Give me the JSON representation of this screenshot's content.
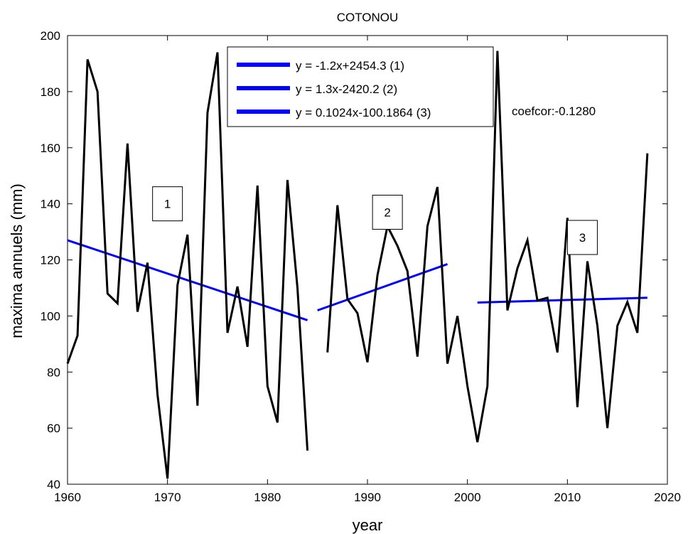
{
  "chart_data": {
    "type": "line",
    "title": "COTONOU",
    "xlabel": "year",
    "ylabel": "maxima annuels (mm)",
    "xlim": [
      1960,
      2020
    ],
    "ylim": [
      40,
      200
    ],
    "xticks": [
      1960,
      1970,
      1980,
      1990,
      2000,
      2010,
      2020
    ],
    "yticks": [
      40,
      60,
      80,
      100,
      120,
      140,
      160,
      180,
      200
    ],
    "grid": false,
    "legend_position": "top-center",
    "colors": {
      "series": "#000000",
      "trend": "#0000ff"
    },
    "series": [
      {
        "values": [
          [
            1960,
            83
          ],
          [
            1961,
            93
          ],
          [
            1962,
            191.5
          ],
          [
            1963,
            180
          ],
          [
            1964,
            108
          ],
          [
            1965,
            104.5
          ],
          [
            1966,
            161.5
          ],
          [
            1967,
            101.5
          ],
          [
            1968,
            119
          ],
          [
            1969,
            72
          ],
          [
            1970,
            42
          ],
          [
            1971,
            111
          ],
          [
            1972,
            129
          ],
          [
            1973,
            68
          ],
          [
            1974,
            172.5
          ],
          [
            1975,
            194
          ],
          [
            1976,
            94
          ],
          [
            1977,
            110.5
          ],
          [
            1978,
            89
          ],
          [
            1979,
            146.5
          ],
          [
            1980,
            75
          ],
          [
            1981,
            62
          ],
          [
            1982,
            148.5
          ],
          [
            1983,
            110
          ],
          [
            1984,
            52
          ],
          [
            1985,
            null
          ],
          [
            1986,
            87
          ],
          [
            1987,
            139.5
          ],
          [
            1988,
            106
          ],
          [
            1989,
            101
          ],
          [
            1990,
            83.5
          ],
          [
            1991,
            114.5
          ],
          [
            1992,
            132
          ],
          [
            1993,
            125
          ],
          [
            1994,
            116
          ],
          [
            1995,
            85.5
          ],
          [
            1996,
            132
          ],
          [
            1997,
            146
          ],
          [
            1998,
            83
          ],
          [
            1999,
            100
          ],
          [
            2000,
            75
          ],
          [
            2001,
            55
          ],
          [
            2002,
            75
          ],
          [
            2003,
            194.5
          ],
          [
            2004,
            102
          ],
          [
            2005,
            117
          ],
          [
            2006,
            127
          ],
          [
            2007,
            105.5
          ],
          [
            2008,
            106.5
          ],
          [
            2009,
            87
          ],
          [
            2010,
            135
          ],
          [
            2011,
            67.5
          ],
          [
            2012,
            119.5
          ],
          [
            2013,
            96.5
          ],
          [
            2014,
            60
          ],
          [
            2015,
            96.5
          ],
          [
            2016,
            105
          ],
          [
            2017,
            94
          ],
          [
            2018,
            158
          ]
        ]
      }
    ],
    "trend_lines": [
      {
        "name": "y = -1.2x+2454.3 (1)",
        "values": [
          [
            1960,
            127
          ],
          [
            1984,
            98.5
          ]
        ]
      },
      {
        "name": "y = 1.3x-2420.2 (2)",
        "values": [
          [
            1985,
            102
          ],
          [
            1998,
            118.5
          ]
        ]
      },
      {
        "name": "y = 0.1024x-100.1864 (3)",
        "values": [
          [
            2001,
            104.8
          ],
          [
            2018,
            106.5
          ]
        ]
      }
    ],
    "annotations": {
      "coefcor": "coefcor:-0.1280",
      "segment_labels": [
        {
          "text": "1",
          "x": 1970,
          "y": 140
        },
        {
          "text": "2",
          "x": 1992,
          "y": 137
        },
        {
          "text": "3",
          "x": 2011.5,
          "y": 128
        }
      ]
    }
  }
}
